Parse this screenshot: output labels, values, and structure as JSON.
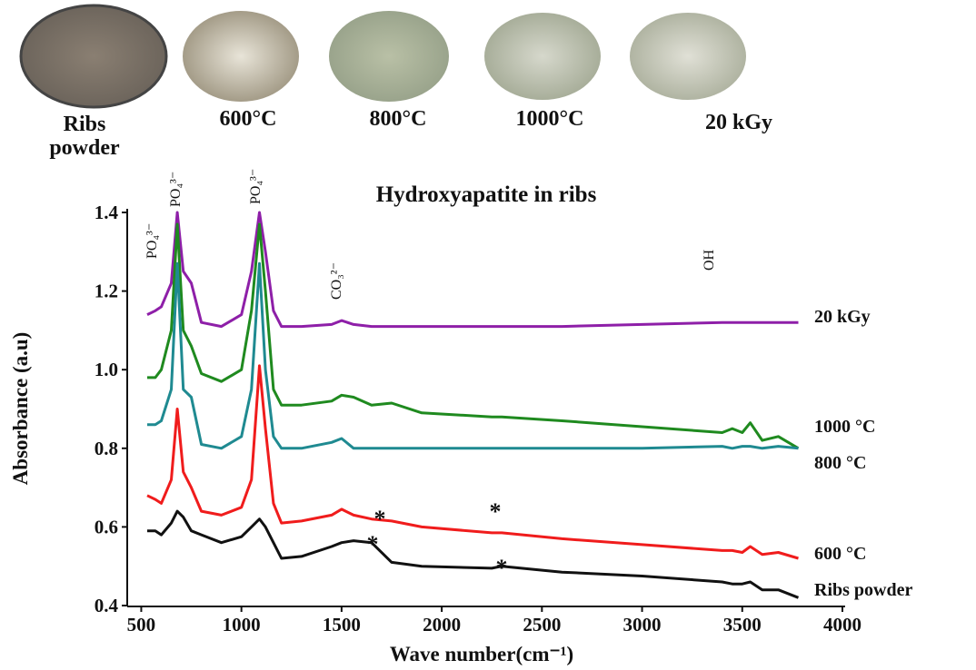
{
  "photo_labels": [
    "Ribs powder",
    "600°C",
    "800°C",
    "1000°C",
    "20 kGy"
  ],
  "chart_data": {
    "type": "line",
    "title": "Hydroxyapatite in ribs",
    "x_label": "Wave number(cm⁻¹)",
    "y_label": "Absorbance (a.u)",
    "xlim": [
      430,
      4000
    ],
    "xticks": [
      500,
      1000,
      1500,
      2000,
      2500,
      3000,
      3500,
      4000
    ],
    "ylim": [
      0.4,
      1.4
    ],
    "yticks": [
      0.4,
      0.6,
      0.8,
      {
        "value": 1,
        "label": "1.0"
      },
      1.2,
      1.4
    ],
    "grid": false,
    "x": [
      530,
      570,
      600,
      650,
      680,
      710,
      750,
      800,
      900,
      1000,
      1050,
      1090,
      1120,
      1160,
      1200,
      1300,
      1450,
      1500,
      1560,
      1650,
      1750,
      1900,
      2250,
      2300,
      2600,
      3000,
      3400,
      3450,
      3500,
      3540,
      3600,
      3680,
      3780
    ],
    "series": [
      {
        "name": "20 kGy",
        "color": "#8e1fa8",
        "values": [
          1.14,
          1.15,
          1.16,
          1.22,
          1.4,
          1.25,
          1.22,
          1.12,
          1.11,
          1.14,
          1.25,
          1.4,
          1.3,
          1.15,
          1.11,
          1.11,
          1.115,
          1.125,
          1.115,
          1.11,
          1.11,
          1.11,
          1.11,
          1.11,
          1.11,
          1.115,
          1.12,
          1.12,
          1.12,
          1.12,
          1.12,
          1.12,
          1.12
        ]
      },
      {
        "name": "1000 °C",
        "color": "#1f8a1f",
        "values": [
          0.98,
          0.98,
          1.0,
          1.1,
          1.37,
          1.1,
          1.06,
          0.99,
          0.97,
          1.0,
          1.15,
          1.37,
          1.2,
          0.95,
          0.91,
          0.91,
          0.92,
          0.935,
          0.93,
          0.91,
          0.915,
          0.89,
          0.88,
          0.88,
          0.87,
          0.855,
          0.84,
          0.85,
          0.84,
          0.865,
          0.82,
          0.83,
          0.8
        ]
      },
      {
        "name": "800 °C",
        "color": "#1f8a91",
        "values": [
          0.86,
          0.86,
          0.87,
          0.95,
          1.27,
          0.95,
          0.93,
          0.81,
          0.8,
          0.83,
          0.95,
          1.27,
          1.0,
          0.83,
          0.8,
          0.8,
          0.815,
          0.825,
          0.8,
          0.8,
          0.8,
          0.8,
          0.8,
          0.8,
          0.8,
          0.8,
          0.805,
          0.8,
          0.805,
          0.805,
          0.8,
          0.805,
          0.8
        ]
      },
      {
        "name": "600 °C",
        "color": "#f01c1c",
        "values": [
          0.68,
          0.67,
          0.66,
          0.72,
          0.9,
          0.74,
          0.7,
          0.64,
          0.63,
          0.65,
          0.72,
          1.01,
          0.85,
          0.66,
          0.61,
          0.615,
          0.63,
          0.645,
          0.63,
          0.62,
          0.615,
          0.6,
          0.585,
          0.585,
          0.57,
          0.555,
          0.54,
          0.54,
          0.535,
          0.55,
          0.53,
          0.535,
          0.52
        ]
      },
      {
        "name": "Ribs powder",
        "color": "#111111",
        "values": [
          0.59,
          0.59,
          0.58,
          0.61,
          0.64,
          0.625,
          0.59,
          0.58,
          0.56,
          0.575,
          0.6,
          0.62,
          0.6,
          0.56,
          0.52,
          0.525,
          0.55,
          0.56,
          0.565,
          0.56,
          0.51,
          0.5,
          0.495,
          0.5,
          0.485,
          0.475,
          0.46,
          0.455,
          0.455,
          0.46,
          0.44,
          0.44,
          0.42
        ]
      }
    ],
    "annotations": [
      "PO₄³⁻",
      "PO₄³⁻",
      "PO₄³⁻",
      "CO₃²⁻",
      "OH",
      "*",
      "*",
      "*",
      "*"
    ]
  }
}
